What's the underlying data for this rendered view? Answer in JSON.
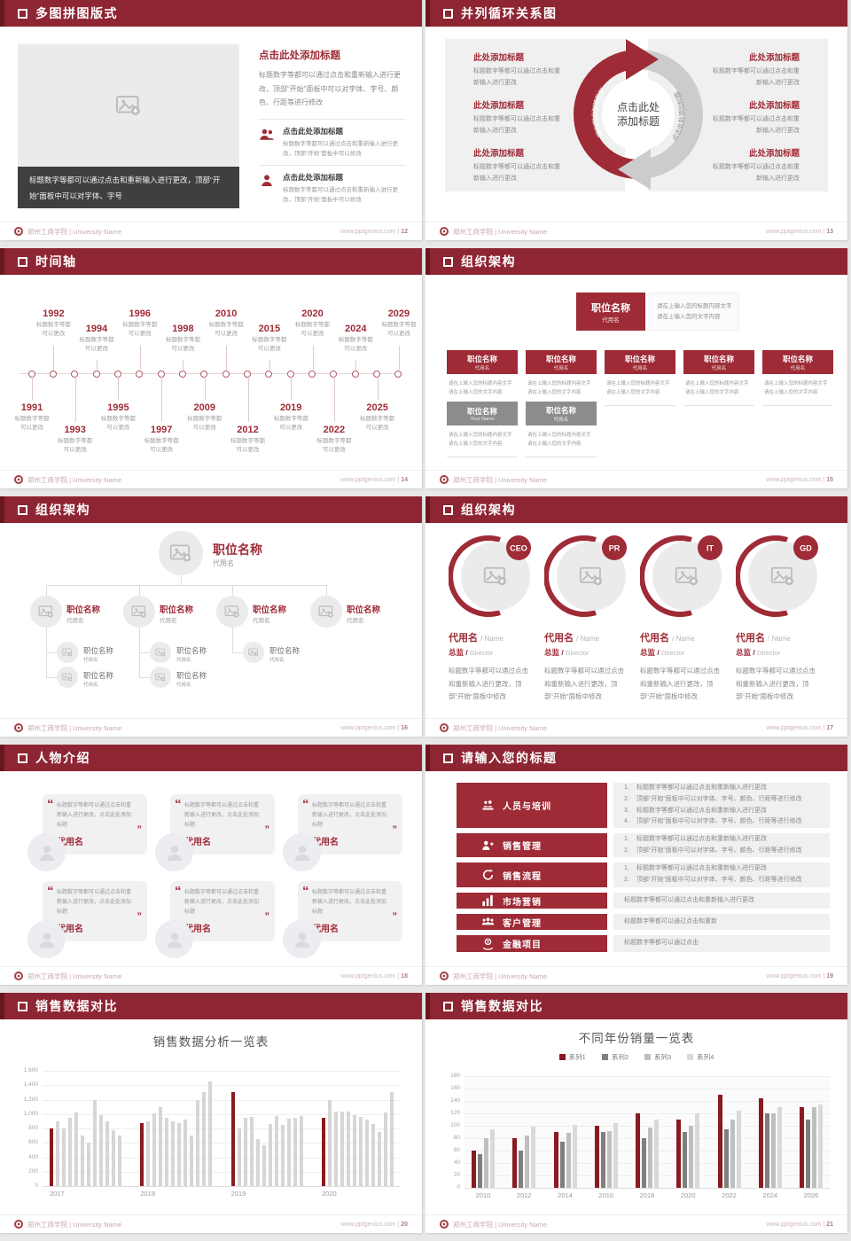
{
  "common": {
    "brand": "郑州工商学院 | University Name",
    "site": "www.pptgenius.com"
  },
  "colors": {
    "header": "#8E2533",
    "header_edge": "#69161F",
    "accent": "#9E2B36",
    "chart_red": "#8A1A21",
    "dark_caption": "#3F3F3F",
    "panel_gray": "#F0F0F0",
    "series_grays": [
      "#7F7F7F",
      "#BFBFBF",
      "#D9D9D9"
    ]
  },
  "icons": {
    "square-bullet": "white outline square",
    "image-placeholder": "picture with plus",
    "person": "single person silhouette",
    "people": "two person silhouettes",
    "avatar": "person bust",
    "training": "people at podium",
    "sales-mgmt": "person with plus",
    "sales-process": "circular arrows",
    "marketing": "bar chart",
    "customer": "group of people",
    "finance": "hand with coin"
  },
  "slides": {
    "s12": {
      "title": "多图拼图版式",
      "page": "12",
      "caption": "标题数字等都可以通过点击和重新输入进行更改，顶部“开始”面板中可以对字体、字号",
      "right_title": "点击此处添加标题",
      "right_para": "标题数字等都可以通过点击和重新输入进行更改，顶部“开始”面板中可以对字体、字号、颜色、行距等进行修改",
      "items": [
        {
          "title": "点击此处添加标题",
          "text": "标题数字等都可以通过点击和重新输入进行更改，顶部“开始”面板中可以修改"
        },
        {
          "title": "点击此处添加标题",
          "text": "标题数字等都可以通过点击和重新输入进行更改，顶部“开始”面板中可以修改"
        }
      ]
    },
    "s13": {
      "title": "并列循环关系图",
      "page": "13",
      "center_l1": "点击此处",
      "center_l2": "添加标题",
      "arc_label": "点击此处添加标题",
      "items_left": [
        {
          "title": "此处添加标题",
          "text": "标题数字等都可以通过点击和重新输入进行更改"
        },
        {
          "title": "此处添加标题",
          "text": "标题数字等都可以通过点击和重新输入进行更改"
        },
        {
          "title": "此处添加标题",
          "text": "标题数字等都可以通过点击和重新输入进行更改"
        }
      ],
      "items_right": [
        {
          "title": "此处添加标题",
          "text": "标题数字等都可以通过点击和重新输入进行更改"
        },
        {
          "title": "此处添加标题",
          "text": "标题数字等都可以通过点击和重新输入进行更改"
        },
        {
          "title": "此处添加标题",
          "text": "标题数字等都可以通过点击和重新输入进行更改"
        }
      ]
    },
    "s14": {
      "title": "时间轴",
      "page": "14",
      "blurb1": "标题数字等都",
      "blurb2": "可以更改",
      "entries": [
        {
          "year": "1991",
          "side": "below",
          "level": 0
        },
        {
          "year": "1992",
          "side": "above",
          "level": 0
        },
        {
          "year": "1993",
          "side": "below",
          "level": 1
        },
        {
          "year": "1994",
          "side": "above",
          "level": 1
        },
        {
          "year": "1995",
          "side": "below",
          "level": 0
        },
        {
          "year": "1996",
          "side": "above",
          "level": 0
        },
        {
          "year": "1997",
          "side": "below",
          "level": 1
        },
        {
          "year": "1998",
          "side": "above",
          "level": 1
        },
        {
          "year": "2009",
          "side": "below",
          "level": 0
        },
        {
          "year": "2010",
          "side": "above",
          "level": 0
        },
        {
          "year": "2012",
          "side": "below",
          "level": 1
        },
        {
          "year": "2015",
          "side": "above",
          "level": 1
        },
        {
          "year": "2019",
          "side": "below",
          "level": 0
        },
        {
          "year": "2020",
          "side": "above",
          "level": 0
        },
        {
          "year": "2022",
          "side": "below",
          "level": 1
        },
        {
          "year": "2024",
          "side": "above",
          "level": 1
        },
        {
          "year": "2025",
          "side": "below",
          "level": 0
        },
        {
          "year": "2029",
          "side": "above",
          "level": 0
        }
      ]
    },
    "s15": {
      "title": "组织架构",
      "page": "15",
      "root": {
        "role": "职位名称",
        "name": "代用名"
      },
      "note1": "请在上输入您的标题内容文字",
      "note2": "请在上输入您的文字内容",
      "row1": [
        {
          "role": "职位名称",
          "name": "代用名"
        },
        {
          "role": "职位名称",
          "name": "代用名"
        },
        {
          "role": "职位名称",
          "name": "代用名"
        },
        {
          "role": "职位名称",
          "name": "代用名"
        },
        {
          "role": "职位名称",
          "name": "代用名"
        }
      ],
      "row2": [
        {
          "role": "职位名称",
          "name": "Your Name"
        },
        {
          "role": "职位名称",
          "name": "代用名"
        }
      ]
    },
    "s16": {
      "title": "组织架构",
      "page": "16",
      "root": {
        "role": "职位名称",
        "name": "代用名"
      },
      "branches": [
        {
          "role": "职位名称",
          "name": "代用名",
          "children": [
            {
              "role": "职位名称",
              "name": "代用名"
            },
            {
              "role": "职位名称",
              "name": "代用名"
            }
          ]
        },
        {
          "role": "职位名称",
          "name": "代用名",
          "children": [
            {
              "role": "职位名称",
              "name": "代用名"
            },
            {
              "role": "职位名称",
              "name": "代用名"
            }
          ]
        },
        {
          "role": "职位名称",
          "name": "代用名",
          "children": [
            {
              "role": "职位名称",
              "name": "代用名"
            }
          ]
        },
        {
          "role": "职位名称",
          "name": "代用名",
          "children": []
        }
      ]
    },
    "s17": {
      "title": "组织架构",
      "page": "17",
      "members": [
        {
          "badge": "CEO",
          "name": "代用名",
          "name_en": "Name",
          "role": "总监",
          "role_en": "Director",
          "text": "标题数字等都可以通过点击和重新输入进行更改，顶部“开始”面板中修改"
        },
        {
          "badge": "PR",
          "name": "代用名",
          "name_en": "Name",
          "role": "总监",
          "role_en": "Director",
          "text": "标题数字等都可以通过点击和重新输入进行更改，顶部“开始”面板中修改"
        },
        {
          "badge": "IT",
          "name": "代用名",
          "name_en": "Name",
          "role": "总监",
          "role_en": "Director",
          "text": "标题数字等都可以通过点击和重新输入进行更改，顶部“开始”面板中修改"
        },
        {
          "badge": "GD",
          "name": "代用名",
          "name_en": "Name",
          "role": "总监",
          "role_en": "Director",
          "text": "标题数字等都可以通过点击和重新输入进行更改，顶部“开始”面板中修改"
        }
      ]
    },
    "s18": {
      "title": "人物介绍",
      "page": "18",
      "cards": [
        {
          "quote": "标题数字等都可以通过点击和重新输入进行更改，点击此处添加标题",
          "name": "代用名"
        },
        {
          "quote": "标题数字等都可以通过点击和重新输入进行更改，点击此处添加标题",
          "name": "代用名"
        },
        {
          "quote": "标题数字等都可以通过点击和重新输入进行更改，点击此处添加标题",
          "name": "代用名"
        },
        {
          "quote": "标题数字等都可以通过点击和重新输入进行更改，点击此处添加标题",
          "name": "代用名"
        },
        {
          "quote": "标题数字等都可以通过点击和重新输入进行更改，点击此处添加标题",
          "name": "代用名"
        },
        {
          "quote": "标题数字等都可以通过点击和重新输入进行更改，点击此处添加标题",
          "name": "代用名"
        }
      ]
    },
    "s19": {
      "title": "请输入您的标题",
      "page": "19",
      "rows": [
        {
          "label": "人员与培训",
          "icon": "training",
          "numbered": true,
          "items": [
            "标题数字等都可以通过点击和重新输入进行更改",
            "顶部“开始”面板中可以对字体、字号、颜色、行距等进行修改",
            "标题数字等都可以通过点击和重新输入进行更改",
            "顶部“开始”面板中可以对字体、字号、颜色、行距等进行修改"
          ]
        },
        {
          "label": "销售管理",
          "icon": "sales-mgmt",
          "numbered": true,
          "items": [
            "标题数字等都可以通过点击和重新输入进行更改",
            "顶部“开始”面板中可以对字体、字号、颜色、行距等进行修改"
          ]
        },
        {
          "label": "销售流程",
          "icon": "sales-process",
          "numbered": true,
          "items": [
            "标题数字等都可以通过点击和重新输入进行更改",
            "顶部“开始”面板中可以对字体、字号、颜色、行距等进行修改"
          ]
        },
        {
          "label": "市场营销",
          "icon": "marketing",
          "numbered": false,
          "items": [
            "标题数字等都可以通过点击和重新输入进行更改"
          ]
        },
        {
          "label": "客户管理",
          "icon": "customer",
          "numbered": false,
          "items": [
            "标题数字等都可以通过点击和重新"
          ]
        },
        {
          "label": "金融项目",
          "icon": "finance",
          "numbered": false,
          "items": [
            "标题数字等都可以通过点击"
          ]
        }
      ]
    },
    "s20": {
      "title": "销售数据对比",
      "page": "20"
    },
    "s21": {
      "title": "销售数据对比",
      "page": "21"
    }
  },
  "chart_data": [
    {
      "type": "bar",
      "title": "销售数据分析一览表",
      "xlabel": "",
      "ylabel": "",
      "ylim": [
        0,
        1600
      ],
      "yticks": [
        "0",
        "200",
        "400",
        "600",
        "800",
        "1,000",
        "1,200",
        "1,400",
        "1,600"
      ],
      "grid": true,
      "legend": "none",
      "highlight_color": "#8A1A21",
      "bar_color": "#D6D6D6",
      "note": "first bar of each year group is dark red",
      "groups": [
        {
          "label": "2017",
          "values": [
            800,
            900,
            800,
            950,
            1025,
            700,
            600,
            1200,
            990,
            900,
            780,
            700
          ]
        },
        {
          "label": "2018",
          "values": [
            875,
            900,
            1010,
            1100,
            950,
            900,
            880,
            920,
            700,
            1200,
            1300,
            1450
          ]
        },
        {
          "label": "2019",
          "values": [
            1300,
            800,
            950,
            960,
            650,
            570,
            860,
            970,
            850,
            930,
            950,
            970
          ]
        },
        {
          "label": "2020",
          "values": [
            950,
            1190,
            1030,
            1040,
            1030,
            985,
            960,
            920,
            860,
            755,
            1020,
            1300
          ]
        }
      ]
    },
    {
      "type": "bar",
      "title": "不同年份销量一览表",
      "xlabel": "",
      "ylabel": "",
      "ylim": [
        0,
        180
      ],
      "yticks": [
        "0",
        "20",
        "40",
        "60",
        "80",
        "100",
        "120",
        "140",
        "160",
        "180"
      ],
      "grid": true,
      "legend": "top",
      "categories": [
        "2010",
        "2012",
        "2014",
        "2016",
        "2018",
        "2020",
        "2022",
        "2024",
        "2026"
      ],
      "series": [
        {
          "name": "系列1",
          "color": "#8A1A21",
          "values": [
            60,
            80,
            90,
            100,
            120,
            110,
            150,
            145,
            130
          ]
        },
        {
          "name": "系列2",
          "color": "#7F7F7F",
          "values": [
            55,
            60,
            75,
            90,
            80,
            90,
            95,
            120,
            110
          ]
        },
        {
          "name": "系列3",
          "color": "#BFBFBF",
          "values": [
            80,
            85,
            88,
            92,
            97,
            100,
            110,
            120,
            130
          ]
        },
        {
          "name": "系列4",
          "color": "#D9D9D9",
          "values": [
            95,
            98,
            102,
            105,
            110,
            120,
            125,
            130,
            135
          ]
        }
      ]
    }
  ]
}
